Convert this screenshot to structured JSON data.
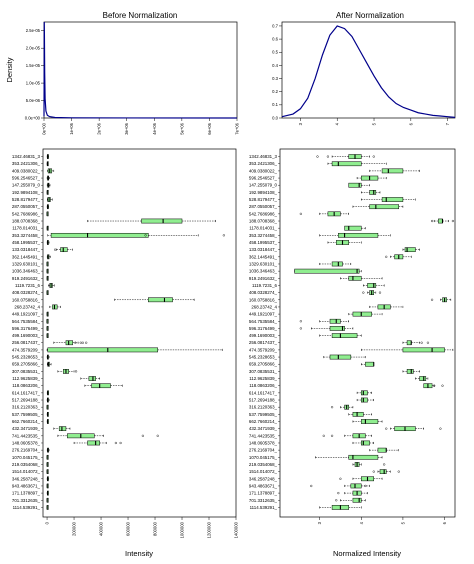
{
  "chart_data": [
    {
      "type": "line",
      "title": "Before Normalization",
      "ylabel": "Density",
      "xlabel": "",
      "x_ticks": [
        "0e+00",
        "1e+06",
        "2e+06",
        "3e+06",
        "4e+06",
        "5e+06",
        "6e+06",
        "7e+06"
      ],
      "y_ticks": [
        "0.0e+00",
        "5.0e-06",
        "1.0e-05",
        "1.5e-05",
        "2.0e-05",
        "2.5e-05"
      ],
      "xlim": [
        0,
        7000000
      ],
      "ylim": [
        0,
        2.75e-05
      ],
      "series": [
        {
          "x": [
            0,
            5000,
            10000,
            15000,
            25000,
            40000,
            70000,
            120000,
            200000,
            400000,
            1000000,
            3000000,
            7000000
          ],
          "y": [
            5e-07,
            1.2e-05,
            2.75e-05,
            2.4e-05,
            1.3e-05,
            5.5e-06,
            2e-06,
            8e-07,
            4e-07,
            1.5e-07,
            5e-08,
            2e-08,
            1e-08
          ]
        }
      ],
      "line_color": "#00008b"
    },
    {
      "type": "line",
      "title": "After Normalization",
      "ylabel": "",
      "xlabel": "",
      "x_ticks": [
        "3",
        "4",
        "5",
        "6",
        "7"
      ],
      "y_ticks": [
        "0.0",
        "0.1",
        "0.2",
        "0.3",
        "0.4",
        "0.5",
        "0.6",
        "0.7"
      ],
      "xlim": [
        2.5,
        7.2
      ],
      "ylim": [
        0,
        0.73
      ],
      "series": [
        {
          "x": [
            2.5,
            2.8,
            3.0,
            3.2,
            3.4,
            3.6,
            3.8,
            4.0,
            4.2,
            4.4,
            4.6,
            4.8,
            5.0,
            5.2,
            5.4,
            5.6,
            5.8,
            6.0,
            6.2,
            6.4,
            6.6,
            6.8,
            7.0,
            7.2
          ],
          "y": [
            0.01,
            0.03,
            0.07,
            0.15,
            0.3,
            0.48,
            0.63,
            0.7,
            0.68,
            0.62,
            0.52,
            0.42,
            0.32,
            0.23,
            0.16,
            0.11,
            0.08,
            0.06,
            0.04,
            0.03,
            0.02,
            0.015,
            0.01,
            0.005
          ]
        }
      ],
      "line_color": "#00008b"
    },
    {
      "type": "boxplot",
      "title": "",
      "xlabel": "Intensity",
      "x_ticks": [
        "0",
        "200000",
        "400000",
        "600000",
        "800000",
        "1000000",
        "1200000",
        "1400000"
      ],
      "xlim": [
        -30000,
        1400000
      ],
      "box_color": "#90ee90",
      "categories": [
        "1342.46831_3",
        "353.2421306_",
        "409.0380022_",
        "596.2546527_",
        "147.255079_0",
        "192.9894108_",
        "528.8179477_",
        "287.0550057_",
        "542.7686986_",
        "188.0708368_",
        "1178.014031_",
        "353.3274458_",
        "458.1995537_",
        "133.0318447_",
        "362.1445491_",
        "1329.630101_",
        "1036.346463_",
        "919.2491632_",
        "1119.7231_6",
        "408.0328274_",
        "160.0758816_",
        "268.23742_4",
        "449.1921097_",
        "564.7535584_",
        "596.3176499_",
        "499.1690003_",
        "256.0817437_",
        "474.3579209_",
        "545.2328653_",
        "659.2705866_",
        "307.0835531_",
        "112.9625839_",
        "118.0863206_",
        "614.1617417_",
        "517.2694188_",
        "316.2120363_",
        "537.7599505_",
        "662.7660214_",
        "432.3471939_",
        "741.4423535_",
        "148.0605378_",
        "276.2169704_",
        "1070.045175_",
        "219.0354068_",
        "1514.014072_",
        "346.2587248_",
        "943.4863671_",
        "171.1378897_",
        "701.3312635_",
        "1114.539291_"
      ],
      "boxes": [
        [
          500,
          2000,
          5000,
          8000,
          12000
        ],
        [
          200,
          1000,
          3000,
          5000,
          8000
        ],
        [
          3000,
          8000,
          20000,
          35000,
          50000
        ],
        [
          500,
          3000,
          8000,
          12000,
          18000
        ],
        [
          1000,
          4000,
          10000,
          15000,
          22000
        ],
        [
          200,
          800,
          2000,
          4000,
          6000
        ],
        [
          2000,
          5000,
          15000,
          25000,
          40000
        ],
        [
          500,
          2000,
          5000,
          8000,
          12000
        ],
        [
          50,
          200,
          500,
          1000,
          2000
        ],
        [
          300000,
          700000,
          860000,
          1000000,
          1250000
        ],
        [
          200,
          800,
          2000,
          4000,
          6000
        ],
        [
          5000,
          30000,
          300000,
          750000,
          1120000
        ],
        [
          500,
          2000,
          5000,
          10000,
          15000
        ],
        [
          70000,
          100000,
          120000,
          150000,
          190000
        ],
        [
          1000,
          3000,
          8000,
          15000,
          25000
        ],
        [
          50,
          200,
          500,
          1000,
          2000
        ],
        [
          100,
          500,
          1000,
          3000,
          6000
        ],
        [
          200,
          600,
          1500,
          3000,
          5000
        ],
        [
          10000,
          20000,
          30000,
          40000,
          55000
        ],
        [
          100,
          300,
          800,
          1500,
          2500
        ],
        [
          500000,
          750000,
          870000,
          930000,
          1090000
        ],
        [
          20000,
          40000,
          55000,
          75000,
          100000
        ],
        [
          200,
          600,
          1500,
          3000,
          5000
        ],
        [
          20,
          60,
          150,
          300,
          500
        ],
        [
          100,
          300,
          800,
          1500,
          2500
        ],
        [
          100,
          400,
          1000,
          2000,
          3000
        ],
        [
          50000,
          140000,
          160000,
          190000,
          230000
        ],
        [
          0,
          5000,
          450000,
          820000,
          1300000
        ],
        [
          500,
          2000,
          5000,
          10000,
          15000
        ],
        [
          2000,
          5000,
          10000,
          18000,
          30000
        ],
        [
          80000,
          120000,
          140000,
          160000,
          200000
        ],
        [
          250000,
          310000,
          340000,
          360000,
          390000
        ],
        [
          280000,
          330000,
          390000,
          470000,
          560000
        ],
        [
          1000,
          3000,
          5000,
          8000,
          12000
        ],
        [
          500,
          2000,
          5000,
          10000,
          15000
        ],
        [
          100,
          500,
          1000,
          2000,
          3000
        ],
        [
          500,
          2000,
          4000,
          7000,
          10000
        ],
        [
          500,
          2000,
          4000,
          7000,
          10000
        ],
        [
          50000,
          90000,
          110000,
          140000,
          170000
        ],
        [
          80000,
          150000,
          250000,
          350000,
          420000
        ],
        [
          200000,
          300000,
          360000,
          390000,
          440000
        ],
        [
          1000,
          3000,
          6000,
          10000,
          15000
        ],
        [
          100,
          500,
          1000,
          2000,
          3000
        ],
        [
          100,
          500,
          1000,
          2000,
          3000
        ],
        [
          100,
          500,
          1000,
          2000,
          3000
        ],
        [
          500,
          2000,
          4000,
          8000,
          12000
        ],
        [
          200,
          800,
          1500,
          3000,
          5000
        ],
        [
          500,
          2000,
          4000,
          7000,
          10000
        ],
        [
          100,
          400,
          800,
          1500,
          2500
        ],
        [
          100,
          400,
          800,
          1500,
          2500
        ]
      ],
      "outliers": [
        [],
        [],
        [],
        [],
        [],
        [],
        [],
        [],
        [],
        [],
        [],
        [
          730000,
          1310000
        ],
        [],
        [
          60000
        ],
        [],
        [],
        [],
        [],
        [],
        [],
        [],
        [],
        [],
        [],
        [],
        [],
        [
          210000,
          250000,
          265000,
          290000
        ],
        [],
        [],
        [],
        [
          215000
        ],
        [],
        [],
        [],
        [],
        [],
        [],
        [],
        [],
        [
          820000,
          710000
        ],
        [
          510000,
          545000
        ],
        [],
        [],
        [],
        [],
        [],
        [],
        [],
        [],
        []
      ]
    },
    {
      "type": "boxplot",
      "title": "",
      "xlabel": "Normalized Intensity",
      "x_ticks": [
        "3",
        "4",
        "5",
        "6"
      ],
      "xlim": [
        2.05,
        6.25
      ],
      "box_color": "#90ee90",
      "boxes": [
        [
          3.3,
          3.7,
          3.85,
          4.0,
          4.2
        ],
        [
          3.2,
          3.3,
          3.45,
          4.0,
          4.6
        ],
        [
          4.2,
          4.5,
          4.65,
          5.0,
          5.4
        ],
        [
          3.9,
          4.0,
          4.2,
          4.4,
          4.6
        ],
        [
          3.9,
          3.7,
          3.95,
          4.0,
          4.2
        ],
        [
          4.0,
          4.2,
          4.3,
          4.35,
          4.45
        ],
        [
          4.0,
          4.5,
          4.6,
          5.0,
          5.3
        ],
        [
          3.8,
          4.2,
          4.35,
          4.9,
          5.0
        ],
        [
          3.0,
          3.2,
          3.35,
          3.5,
          3.7
        ],
        [
          5.75,
          5.85,
          5.95,
          5.95,
          6.1
        ],
        [
          3.7,
          3.6,
          3.7,
          4.0,
          4.1
        ],
        [
          3.0,
          3.45,
          3.6,
          4.4,
          4.7
        ],
        [
          3.2,
          3.4,
          3.55,
          3.7,
          4.0
        ],
        [
          5.0,
          5.05,
          5.1,
          5.3,
          5.4
        ],
        [
          4.7,
          4.8,
          4.9,
          5.0,
          5.2
        ],
        [
          3.0,
          3.3,
          3.45,
          3.55,
          3.75
        ],
        [
          2.4,
          2.4,
          3.9,
          3.95,
          4.0
        ],
        [
          3.5,
          3.7,
          3.8,
          4.0,
          4.5
        ],
        [
          4.05,
          4.15,
          4.3,
          4.35,
          4.55
        ],
        [
          4.15,
          4.2,
          4.25,
          4.3,
          4.35
        ],
        [
          5.9,
          5.95,
          6.0,
          6.05,
          6.15
        ],
        [
          4.2,
          4.4,
          4.55,
          4.7,
          5.0
        ],
        [
          3.7,
          3.8,
          4.0,
          4.25,
          4.5
        ],
        [
          3.0,
          3.25,
          3.4,
          3.5,
          3.7
        ],
        [
          2.8,
          3.25,
          3.55,
          3.6,
          3.8
        ],
        [
          3.0,
          3.3,
          3.5,
          3.9,
          4.0
        ],
        [
          5.0,
          5.1,
          5.2,
          5.2,
          5.4
        ],
        [
          4.0,
          5.0,
          5.7,
          6.0,
          6.2
        ],
        [
          3.1,
          3.25,
          3.45,
          3.75,
          4.1
        ],
        [
          4.0,
          4.1,
          4.3,
          4.3,
          4.3
        ],
        [
          5.0,
          5.1,
          5.2,
          5.25,
          5.4
        ],
        [
          5.3,
          5.4,
          5.5,
          5.55,
          5.6
        ],
        [
          5.5,
          5.5,
          5.6,
          5.7,
          5.75
        ],
        [
          3.9,
          4.0,
          4.05,
          4.15,
          4.25
        ],
        [
          3.9,
          4.0,
          4.05,
          4.15,
          4.3
        ],
        [
          3.5,
          3.6,
          3.65,
          3.7,
          3.8
        ],
        [
          3.7,
          3.8,
          3.9,
          4.05,
          4.25
        ],
        [
          3.8,
          4.0,
          4.1,
          4.4,
          4.5
        ],
        [
          4.7,
          4.8,
          5.05,
          5.3,
          5.5
        ],
        [
          3.6,
          3.8,
          3.95,
          4.1,
          4.25
        ],
        [
          3.8,
          4.0,
          4.05,
          4.2,
          4.3
        ],
        [
          4.2,
          4.4,
          4.6,
          4.6,
          4.9
        ],
        [
          2.9,
          3.7,
          3.8,
          4.4,
          4.5
        ],
        [
          3.8,
          3.85,
          3.9,
          3.95,
          4.0
        ],
        [
          4.4,
          4.45,
          4.55,
          4.6,
          4.7
        ],
        [
          3.8,
          4.0,
          4.15,
          4.3,
          4.5
        ],
        [
          3.6,
          3.75,
          3.85,
          4.0,
          4.2
        ],
        [
          3.6,
          3.8,
          3.9,
          4.0,
          4.15
        ],
        [
          3.5,
          3.8,
          3.95,
          4.0,
          4.1
        ],
        [
          3.0,
          3.3,
          3.5,
          3.7,
          4.0
        ]
      ],
      "outliers": [
        [
          2.95,
          3.2,
          4.3
        ],
        [],
        [],
        [],
        [],
        [],
        [],
        [],
        [
          2.55
        ],
        [
          5.7,
          6.2
        ],
        [],
        [],
        [],
        [],
        [
          4.6
        ],
        [],
        [],
        [],
        [],
        [
          4.05,
          4.45
        ],
        [
          5.7
        ],
        [],
        [],
        [
          2.55
        ],
        [
          2.55
        ],
        [],
        [
          5.45,
          5.6
        ],
        [],
        [],
        [],
        [],
        [],
        [
          5.75,
          5.95
        ],
        [],
        [],
        [
          3.3
        ],
        [],
        [],
        [
          4.6,
          5.9
        ],
        [
          3.1,
          3.3
        ],
        [],
        [],
        [],
        [
          4.55
        ],
        [
          4.3,
          4.9
        ],
        [
          3.5
        ],
        [
          2.8,
          4.1
        ],
        [
          3.45
        ],
        [
          3.4
        ],
        []
      ]
    }
  ]
}
